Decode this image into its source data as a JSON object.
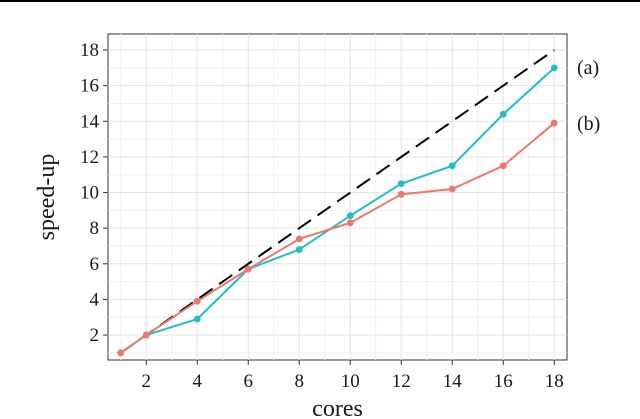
{
  "chart_data": {
    "type": "line",
    "xlabel": "cores",
    "ylabel": "speed-up",
    "xlim": [
      0.5,
      18.5
    ],
    "ylim": [
      0.6,
      18.9
    ],
    "x_ticks": [
      2,
      4,
      6,
      8,
      10,
      12,
      14,
      16,
      18
    ],
    "y_ticks": [
      2,
      4,
      6,
      8,
      10,
      12,
      14,
      16,
      18
    ],
    "grid": true,
    "ideal": {
      "x": [
        1,
        18
      ],
      "y": [
        1,
        18
      ],
      "style": "dashed",
      "color": "#000000"
    },
    "series": [
      {
        "name": "(a)",
        "color": "#1fbfc4",
        "x": [
          1,
          2,
          4,
          6,
          8,
          10,
          12,
          14,
          16,
          18
        ],
        "y": [
          1.0,
          2.0,
          2.9,
          5.7,
          6.8,
          8.7,
          10.5,
          11.5,
          14.4,
          17.0
        ]
      },
      {
        "name": "(b)",
        "color": "#ef766c",
        "x": [
          1,
          2,
          4,
          6,
          8,
          10,
          12,
          14,
          16,
          18
        ],
        "y": [
          1.0,
          2.0,
          3.9,
          5.7,
          7.4,
          8.3,
          9.9,
          10.2,
          11.5,
          13.9
        ]
      }
    ]
  }
}
